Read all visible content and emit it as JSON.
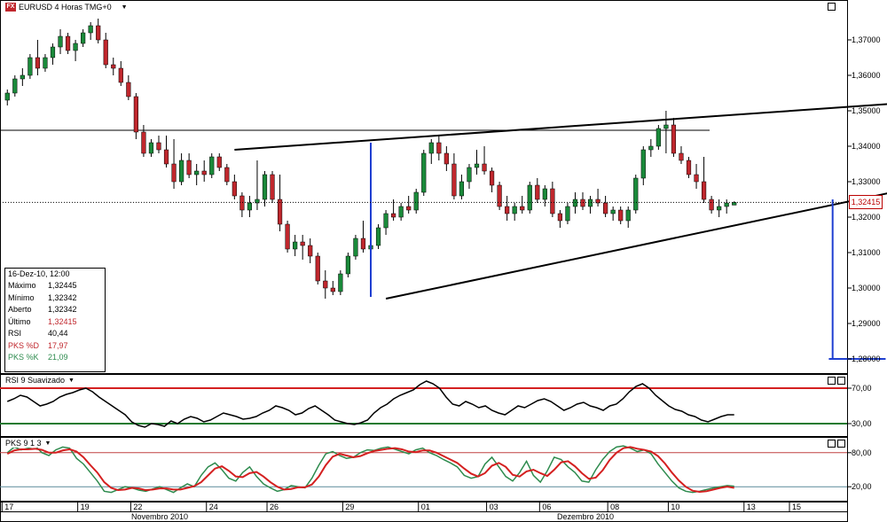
{
  "header": {
    "icon_label": "FX",
    "title": "EURUSD 4 Horas TMG+0",
    "dropdown_icon": "chevron-down-icon"
  },
  "colors": {
    "bull": "#1a8a3a",
    "bear": "#c0272d",
    "trendline": "#000000",
    "target_line": "#1f3fd1",
    "rsi_upper": "#d42020",
    "rsi_lower": "#1f7a30",
    "stoch_k": "#2e8b4e",
    "stoch_d": "#d42020"
  },
  "info_box": {
    "date": "16-Dez-10, 12:00",
    "rows": [
      {
        "label": "Máximo",
        "value": "1,32445"
      },
      {
        "label": "Mínimo",
        "value": "1,32342"
      },
      {
        "label": "Aberto",
        "value": "1,32342"
      },
      {
        "label": "Último",
        "value": "1,32415"
      },
      {
        "label": "RSI",
        "value": "40,44"
      },
      {
        "label": "PKS %D",
        "value": "17,97"
      },
      {
        "label": "PKS %K",
        "value": "21,09"
      }
    ]
  },
  "price_tag": "1,32415",
  "rsi_pane": {
    "title": "RSI 9 Suavizado"
  },
  "stoch_pane": {
    "title": "PKS 9 1 3"
  },
  "chart_data": [
    {
      "type": "candlestick",
      "title": "EURUSD 4 Horas TMG+0",
      "ylim": [
        1.2775,
        1.3775
      ],
      "y_ticks": [
        "1,28000",
        "1,29000",
        "1,30000",
        "1,31000",
        "1,32000",
        "1,33000",
        "1,34000",
        "1,35000",
        "1,36000",
        "1,37000"
      ],
      "last_price": 1.32415,
      "horizontal_line": 1.3445,
      "ohlc": [
        [
          1.353,
          1.356,
          1.3515,
          1.355
        ],
        [
          1.355,
          1.36,
          1.354,
          1.359
        ],
        [
          1.359,
          1.362,
          1.357,
          1.36
        ],
        [
          1.36,
          1.366,
          1.359,
          1.365
        ],
        [
          1.365,
          1.37,
          1.36,
          1.362
        ],
        [
          1.362,
          1.366,
          1.361,
          1.365
        ],
        [
          1.365,
          1.369,
          1.363,
          1.368
        ],
        [
          1.368,
          1.373,
          1.366,
          1.371
        ],
        [
          1.371,
          1.372,
          1.366,
          1.367
        ],
        [
          1.367,
          1.37,
          1.364,
          1.369
        ],
        [
          1.369,
          1.373,
          1.368,
          1.372
        ],
        [
          1.372,
          1.375,
          1.37,
          1.374
        ],
        [
          1.374,
          1.376,
          1.369,
          1.37
        ],
        [
          1.37,
          1.372,
          1.362,
          1.363
        ],
        [
          1.363,
          1.365,
          1.36,
          1.362
        ],
        [
          1.362,
          1.364,
          1.357,
          1.358
        ],
        [
          1.358,
          1.36,
          1.353,
          1.354
        ],
        [
          1.354,
          1.355,
          1.342,
          1.344
        ],
        [
          1.344,
          1.346,
          1.337,
          1.338
        ],
        [
          1.338,
          1.342,
          1.337,
          1.341
        ],
        [
          1.341,
          1.343,
          1.338,
          1.339
        ],
        [
          1.339,
          1.343,
          1.334,
          1.335
        ],
        [
          1.335,
          1.342,
          1.328,
          1.33
        ],
        [
          1.33,
          1.338,
          1.329,
          1.336
        ],
        [
          1.336,
          1.338,
          1.331,
          1.332
        ],
        [
          1.332,
          1.335,
          1.329,
          1.333
        ],
        [
          1.333,
          1.336,
          1.33,
          1.332
        ],
        [
          1.332,
          1.338,
          1.331,
          1.337
        ],
        [
          1.337,
          1.338,
          1.333,
          1.334
        ],
        [
          1.334,
          1.335,
          1.329,
          1.33
        ],
        [
          1.33,
          1.332,
          1.325,
          1.326
        ],
        [
          1.326,
          1.327,
          1.32,
          1.322
        ],
        [
          1.322,
          1.326,
          1.32,
          1.324
        ],
        [
          1.324,
          1.336,
          1.322,
          1.325
        ],
        [
          1.325,
          1.333,
          1.323,
          1.332
        ],
        [
          1.332,
          1.333,
          1.324,
          1.325
        ],
        [
          1.325,
          1.332,
          1.316,
          1.318
        ],
        [
          1.318,
          1.319,
          1.31,
          1.311
        ],
        [
          1.311,
          1.315,
          1.309,
          1.313
        ],
        [
          1.313,
          1.315,
          1.308,
          1.312
        ],
        [
          1.312,
          1.314,
          1.307,
          1.309
        ],
        [
          1.309,
          1.31,
          1.301,
          1.302
        ],
        [
          1.302,
          1.305,
          1.297,
          1.3
        ],
        [
          1.3,
          1.302,
          1.298,
          1.299
        ],
        [
          1.299,
          1.305,
          1.298,
          1.304
        ],
        [
          1.304,
          1.31,
          1.303,
          1.309
        ],
        [
          1.309,
          1.315,
          1.308,
          1.314
        ],
        [
          1.314,
          1.319,
          1.31,
          1.311
        ],
        [
          1.311,
          1.313,
          1.308,
          1.312
        ],
        [
          1.312,
          1.318,
          1.311,
          1.317
        ],
        [
          1.317,
          1.322,
          1.315,
          1.321
        ],
        [
          1.321,
          1.325,
          1.319,
          1.32
        ],
        [
          1.32,
          1.324,
          1.319,
          1.323
        ],
        [
          1.323,
          1.326,
          1.321,
          1.322
        ],
        [
          1.322,
          1.328,
          1.321,
          1.327
        ],
        [
          1.327,
          1.339,
          1.326,
          1.338
        ],
        [
          1.338,
          1.342,
          1.335,
          1.341
        ],
        [
          1.341,
          1.343,
          1.336,
          1.338
        ],
        [
          1.338,
          1.34,
          1.333,
          1.335
        ],
        [
          1.335,
          1.338,
          1.325,
          1.326
        ],
        [
          1.326,
          1.332,
          1.325,
          1.33
        ],
        [
          1.33,
          1.335,
          1.328,
          1.334
        ],
        [
          1.334,
          1.339,
          1.332,
          1.335
        ],
        [
          1.335,
          1.34,
          1.332,
          1.333
        ],
        [
          1.333,
          1.334,
          1.327,
          1.329
        ],
        [
          1.329,
          1.33,
          1.322,
          1.323
        ],
        [
          1.323,
          1.326,
          1.319,
          1.321
        ],
        [
          1.321,
          1.324,
          1.319,
          1.323
        ],
        [
          1.323,
          1.326,
          1.321,
          1.322
        ],
        [
          1.322,
          1.33,
          1.321,
          1.329
        ],
        [
          1.329,
          1.331,
          1.324,
          1.325
        ],
        [
          1.325,
          1.329,
          1.323,
          1.328
        ],
        [
          1.328,
          1.33,
          1.32,
          1.321
        ],
        [
          1.321,
          1.322,
          1.317,
          1.319
        ],
        [
          1.319,
          1.324,
          1.318,
          1.323
        ],
        [
          1.323,
          1.327,
          1.321,
          1.325
        ],
        [
          1.325,
          1.327,
          1.322,
          1.323
        ],
        [
          1.323,
          1.326,
          1.321,
          1.325
        ],
        [
          1.325,
          1.328,
          1.323,
          1.324
        ],
        [
          1.324,
          1.326,
          1.32,
          1.321
        ],
        [
          1.321,
          1.323,
          1.319,
          1.322
        ],
        [
          1.322,
          1.323,
          1.318,
          1.319
        ],
        [
          1.319,
          1.323,
          1.317,
          1.322
        ],
        [
          1.322,
          1.332,
          1.321,
          1.331
        ],
        [
          1.331,
          1.34,
          1.329,
          1.339
        ],
        [
          1.339,
          1.342,
          1.337,
          1.34
        ],
        [
          1.34,
          1.346,
          1.339,
          1.345
        ],
        [
          1.345,
          1.35,
          1.338,
          1.346
        ],
        [
          1.346,
          1.348,
          1.337,
          1.338
        ],
        [
          1.338,
          1.34,
          1.335,
          1.336
        ],
        [
          1.336,
          1.337,
          1.331,
          1.332
        ],
        [
          1.332,
          1.335,
          1.328,
          1.33
        ],
        [
          1.33,
          1.337,
          1.324,
          1.325
        ],
        [
          1.325,
          1.326,
          1.321,
          1.322
        ],
        [
          1.322,
          1.325,
          1.32,
          1.323
        ],
        [
          1.323,
          1.325,
          1.321,
          1.324
        ],
        [
          1.3234,
          1.32445,
          1.32342,
          1.32415
        ]
      ],
      "trendlines": [
        {
          "points": [
            [
              30,
              1.339
            ],
            [
              117,
              1.352
            ]
          ]
        },
        {
          "points": [
            [
              50,
              1.297
            ],
            [
              118,
              1.3275
            ]
          ]
        }
      ],
      "target_lines": [
        {
          "x": 48,
          "from": 1.341,
          "to": 1.2975
        },
        {
          "x": 109,
          "from": 1.325,
          "to": 1.28
        },
        {
          "x_range": [
            108.5,
            116
          ],
          "value": 1.28
        }
      ]
    },
    {
      "type": "line",
      "title": "RSI 9 Suavizado",
      "ylim": [
        20,
        80
      ],
      "y_ticks": [
        "70,00",
        "30,00"
      ],
      "reference_lines": [
        70,
        30
      ],
      "series": [
        {
          "values": [
            55,
            58,
            62,
            60,
            55,
            50,
            52,
            55,
            60,
            63,
            65,
            68,
            70,
            66,
            60,
            55,
            50,
            45,
            40,
            32,
            28,
            26,
            30,
            29,
            27,
            33,
            30,
            35,
            38,
            36,
            32,
            34,
            38,
            42,
            40,
            38,
            35,
            36,
            38,
            42,
            45,
            50,
            48,
            45,
            40,
            42,
            47,
            50,
            45,
            40,
            34,
            32,
            30,
            29,
            31,
            34,
            42,
            48,
            52,
            58,
            62,
            65,
            68,
            74,
            78,
            75,
            70,
            60,
            52,
            50,
            55,
            52,
            48,
            50,
            45,
            42,
            40,
            45,
            50,
            48,
            52,
            56,
            58,
            55,
            50,
            45,
            48,
            52,
            54,
            50,
            48,
            45,
            50,
            52,
            58,
            66,
            72,
            75,
            70,
            62,
            56,
            50,
            46,
            44,
            40,
            38,
            34,
            32,
            35,
            38,
            40,
            40
          ]
        }
      ]
    },
    {
      "type": "line",
      "title": "PKS 9 1 3",
      "ylim": [
        0,
        100
      ],
      "y_ticks": [
        "80,00",
        "20,00"
      ],
      "reference_lines": [
        80,
        20
      ],
      "series": [
        {
          "name": "%K",
          "values": [
            80,
            90,
            85,
            88,
            92,
            80,
            75,
            85,
            90,
            88,
            70,
            60,
            45,
            30,
            12,
            10,
            15,
            20,
            18,
            14,
            12,
            16,
            20,
            15,
            10,
            18,
            25,
            20,
            40,
            55,
            62,
            50,
            35,
            30,
            45,
            55,
            38,
            25,
            18,
            12,
            15,
            22,
            20,
            18,
            35,
            58,
            78,
            82,
            75,
            70,
            72,
            80,
            85,
            84,
            88,
            90,
            86,
            82,
            78,
            85,
            88,
            80,
            75,
            68,
            62,
            55,
            40,
            35,
            38,
            60,
            72,
            55,
            38,
            30,
            45,
            65,
            40,
            28,
            48,
            72,
            68,
            55,
            45,
            30,
            28,
            50,
            68,
            82,
            90,
            92,
            88,
            82,
            85,
            78,
            60,
            45,
            30,
            18,
            12,
            10,
            12,
            15,
            18,
            20,
            22,
            21
          ]
        },
        {
          "name": "%D",
          "values": [
            78,
            84,
            86,
            86,
            87,
            85,
            80,
            80,
            84,
            86,
            82,
            72,
            58,
            45,
            28,
            18,
            14,
            15,
            18,
            17,
            14,
            15,
            17,
            17,
            15,
            15,
            18,
            21,
            28,
            40,
            52,
            56,
            48,
            38,
            37,
            44,
            46,
            38,
            28,
            20,
            15,
            16,
            19,
            19,
            24,
            38,
            58,
            73,
            78,
            75,
            72,
            74,
            79,
            83,
            85,
            87,
            88,
            86,
            82,
            81,
            84,
            84,
            80,
            74,
            68,
            62,
            52,
            43,
            38,
            44,
            57,
            62,
            55,
            41,
            38,
            47,
            50,
            44,
            39,
            50,
            63,
            65,
            56,
            44,
            34,
            36,
            49,
            67,
            80,
            88,
            90,
            87,
            85,
            82,
            74,
            61,
            45,
            31,
            20,
            13,
            11,
            12,
            15,
            18,
            20,
            18
          ]
        }
      ]
    }
  ],
  "x_axis": {
    "day_labels": [
      {
        "label": "17",
        "index": 0
      },
      {
        "label": "19",
        "index": 10
      },
      {
        "label": "22",
        "index": 17
      },
      {
        "label": "24",
        "index": 27
      },
      {
        "label": "26",
        "index": 35
      },
      {
        "label": "29",
        "index": 45
      },
      {
        "label": "01",
        "index": 55
      },
      {
        "label": "03",
        "index": 64
      },
      {
        "label": "06",
        "index": 71
      },
      {
        "label": "08",
        "index": 80
      },
      {
        "label": "10",
        "index": 88
      },
      {
        "label": "13",
        "index": 98
      },
      {
        "label": "15",
        "index": 104
      }
    ],
    "month_labels": [
      "Novembro 2010",
      "Dezembro 2010"
    ]
  }
}
